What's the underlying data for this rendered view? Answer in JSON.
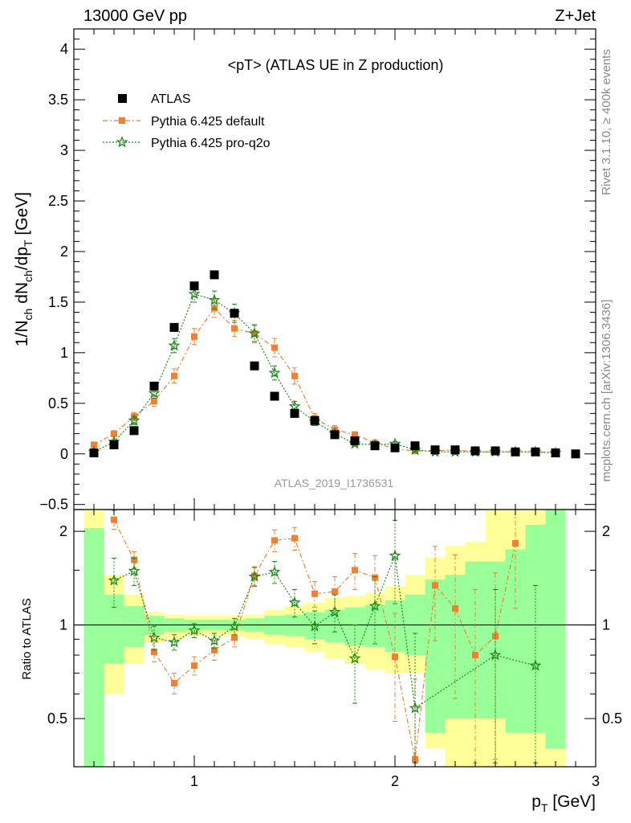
{
  "header": {
    "energy_label": "13000 GeV pp",
    "process_label": "Z+Jet"
  },
  "side_labels": {
    "rivet": "Rivet 3.1.10, ≥ 400k events",
    "mcplots": "mcplots.cern.ch [arXiv:1306.3436]"
  },
  "colors": {
    "atlas": "#000000",
    "pythia_default": "#f47f2f",
    "pythia_proq2o": "#1a8a1a",
    "band_green": "#99ff99",
    "band_yellow": "#ffff99"
  },
  "chart_data": [
    {
      "type": "scatter",
      "title": "<pT> (ATLAS UE in Z production)",
      "watermark": "ATLAS_2019_I1736531",
      "ylabel": "1/N_ch dN_ch/dp_T [GeV]",
      "xlim": [
        0.4,
        3.0
      ],
      "ylim": [
        -0.55,
        4.2
      ],
      "yticks": [
        -0.5,
        0,
        0.5,
        1,
        1.5,
        2,
        2.5,
        3,
        3.5,
        4
      ],
      "ytick_labels": [
        "−0.5",
        "0",
        "0.5",
        "1",
        "1.5",
        "2",
        "2.5",
        "3",
        "3.5",
        "4"
      ],
      "legend": "top-left",
      "series": [
        {
          "name": "ATLAS",
          "marker": "square",
          "x": [
            0.5,
            0.6,
            0.7,
            0.8,
            0.9,
            1.0,
            1.1,
            1.2,
            1.3,
            1.4,
            1.5,
            1.6,
            1.7,
            1.8,
            1.9,
            2.0,
            2.1,
            2.2,
            2.3,
            2.4,
            2.5,
            2.6,
            2.7,
            2.8,
            2.9
          ],
          "y": [
            0.01,
            0.09,
            0.23,
            0.67,
            1.25,
            1.66,
            1.77,
            1.39,
            0.87,
            0.57,
            0.4,
            0.33,
            0.19,
            0.13,
            0.08,
            0.06,
            0.08,
            0.04,
            0.04,
            0.03,
            0.03,
            0.02,
            0.02,
            0.01,
            0.0
          ]
        },
        {
          "name": "Pythia 6.425 default",
          "marker": "square-small",
          "line": "dashdot",
          "x": [
            0.5,
            0.6,
            0.7,
            0.8,
            0.9,
            1.0,
            1.1,
            1.2,
            1.3,
            1.4,
            1.5,
            1.6,
            1.7,
            1.8,
            1.9,
            2.0,
            2.1,
            2.2,
            2.3,
            2.4,
            2.5,
            2.6,
            2.7,
            2.8
          ],
          "y": [
            0.09,
            0.2,
            0.37,
            0.52,
            0.77,
            1.16,
            1.44,
            1.24,
            1.19,
            1.05,
            0.77,
            0.35,
            0.24,
            0.19,
            0.11,
            0.05,
            0.03,
            0.03,
            0.04,
            0.02,
            0.02,
            0.02,
            0.02,
            0.01
          ],
          "yerr": [
            0.02,
            0.03,
            0.04,
            0.05,
            0.07,
            0.08,
            0.09,
            0.08,
            0.09,
            0.09,
            0.08,
            0.05,
            0.04,
            0.03,
            0.02,
            0.02,
            0.01,
            0.01,
            0.01,
            0.01,
            0.01,
            0.01,
            0.01,
            0.01
          ]
        },
        {
          "name": "Pythia 6.425 pro-q2o",
          "marker": "star",
          "line": "dotted",
          "x": [
            0.5,
            0.6,
            0.7,
            0.8,
            0.9,
            1.0,
            1.1,
            1.2,
            1.3,
            1.4,
            1.5,
            1.6,
            1.7,
            1.8,
            1.9,
            2.0,
            2.1,
            2.2,
            2.3,
            2.4,
            2.5,
            2.6,
            2.7,
            2.8
          ],
          "y": [
            0.02,
            0.12,
            0.33,
            0.6,
            1.07,
            1.58,
            1.52,
            1.39,
            1.19,
            0.8,
            0.47,
            0.32,
            0.2,
            0.1,
            0.09,
            0.1,
            0.04,
            0.02,
            0.02,
            0.02,
            0.02,
            0.02,
            0.02,
            0.01
          ],
          "yerr": [
            0.01,
            0.02,
            0.04,
            0.05,
            0.07,
            0.08,
            0.09,
            0.09,
            0.08,
            0.07,
            0.05,
            0.04,
            0.03,
            0.02,
            0.02,
            0.02,
            0.01,
            0.01,
            0.01,
            0.01,
            0.01,
            0.01,
            0.01,
            0.01
          ]
        }
      ]
    },
    {
      "type": "scatter",
      "ylabel": "Ratio to ATLAS",
      "xlabel": "p_T [GeV]",
      "xlim": [
        0.4,
        3.0
      ],
      "ylim": [
        0.35,
        2.35
      ],
      "xticks": [
        1,
        2,
        3
      ],
      "xtick_labels": [
        "1",
        "2",
        "3"
      ],
      "yticks": [
        0.5,
        1,
        2
      ],
      "ytick_labels": [
        "0.5",
        "1",
        "2"
      ],
      "ref_line": 1,
      "bands": {
        "x_edges": [
          0.45,
          0.55,
          0.65,
          0.75,
          0.85,
          0.95,
          1.05,
          1.15,
          1.25,
          1.35,
          1.45,
          1.55,
          1.65,
          1.75,
          1.85,
          1.95,
          2.05,
          2.15,
          2.25,
          2.35,
          2.45,
          2.55,
          2.65,
          2.75,
          2.85
        ],
        "green_lo": [
          0.35,
          0.75,
          0.85,
          0.93,
          0.95,
          0.96,
          0.96,
          0.96,
          0.95,
          0.93,
          0.92,
          0.9,
          0.88,
          0.86,
          0.85,
          0.82,
          0.8,
          0.45,
          0.5,
          0.5,
          0.5,
          0.45,
          0.45,
          0.4
        ],
        "green_hi": [
          2.05,
          1.25,
          1.15,
          1.07,
          1.05,
          1.04,
          1.04,
          1.04,
          1.05,
          1.07,
          1.08,
          1.1,
          1.12,
          1.14,
          1.16,
          1.2,
          1.25,
          1.4,
          1.45,
          1.6,
          1.6,
          1.75,
          2.1,
          2.35
        ],
        "yellow_lo": [
          0.35,
          0.6,
          0.75,
          0.88,
          0.9,
          0.92,
          0.92,
          0.92,
          0.9,
          0.87,
          0.85,
          0.82,
          0.78,
          0.75,
          0.72,
          0.7,
          0.7,
          0.4,
          0.35,
          0.35,
          0.35,
          0.35,
          0.35,
          0.35
        ],
        "yellow_hi": [
          2.35,
          1.45,
          1.25,
          1.1,
          1.08,
          1.07,
          1.07,
          1.07,
          1.08,
          1.12,
          1.15,
          1.18,
          1.22,
          1.24,
          1.27,
          1.33,
          1.45,
          1.65,
          1.8,
          1.85,
          2.35,
          2.35,
          2.35,
          2.35
        ]
      },
      "series": [
        {
          "name": "Pythia 6.425 default",
          "x": [
            0.6,
            0.7,
            0.8,
            0.9,
            1.0,
            1.1,
            1.2,
            1.3,
            1.4,
            1.5,
            1.6,
            1.7,
            1.8,
            1.9,
            2.0,
            2.1,
            2.2,
            2.3,
            2.4,
            2.5,
            2.6
          ],
          "y": [
            2.18,
            1.62,
            0.82,
            0.65,
            0.74,
            0.83,
            0.91,
            1.44,
            1.87,
            1.9,
            1.26,
            1.28,
            1.5,
            1.42,
            0.79,
            0.37,
            1.34,
            1.13,
            0.8,
            0.92,
            1.83
          ],
          "yerr": [
            0.15,
            0.1,
            0.06,
            0.05,
            0.05,
            0.06,
            0.06,
            0.1,
            0.15,
            0.16,
            0.12,
            0.15,
            0.2,
            0.25,
            0.3,
            0.3,
            0.45,
            0.55,
            0.5,
            0.55,
            0.7
          ]
        },
        {
          "name": "Pythia 6.425 pro-q2o",
          "x": [
            0.6,
            0.7,
            0.8,
            0.9,
            1.0,
            1.1,
            1.2,
            1.3,
            1.4,
            1.5,
            1.6,
            1.7,
            1.8,
            1.9,
            2.0,
            2.1,
            2.5,
            2.7
          ],
          "y": [
            1.39,
            1.49,
            0.91,
            0.88,
            0.96,
            0.89,
            0.99,
            1.43,
            1.48,
            1.18,
            0.99,
            1.1,
            0.78,
            1.15,
            1.67,
            0.54,
            0.8,
            0.74
          ],
          "yerr": [
            0.25,
            0.15,
            0.08,
            0.05,
            0.05,
            0.05,
            0.06,
            0.1,
            0.12,
            0.12,
            0.12,
            0.15,
            0.22,
            0.28,
            0.5,
            0.4,
            0.5,
            0.6
          ]
        }
      ]
    }
  ]
}
